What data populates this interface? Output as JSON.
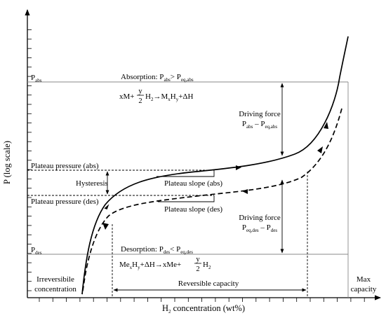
{
  "figure": {
    "axis_y_label": "P (log scale)",
    "axis_x_label": {
      "main": "H",
      "sub": "2",
      "rest": " concentration (wt%)"
    }
  },
  "levels": {
    "p_abs": {
      "main": "P",
      "sub": "abs"
    },
    "p_des": {
      "main": "P",
      "sub": "des"
    },
    "plateau_abs": "Plateau pressure (abs)",
    "plateau_des": "Plateau pressure (des)",
    "hysteresis": "Hysteresis"
  },
  "slopes": {
    "abs": "Plateau slope (abs)",
    "des": "Plateau slope (des)"
  },
  "absorption": {
    "title_prefix": "Absorption: P",
    "title_sub1": "abs",
    "title_mid": "> P",
    "title_sub2": "eq,abs",
    "reaction": {
      "left": "xM+",
      "frac_num": "y",
      "frac_den": "2",
      "h2": "H",
      "h2_sub": "2",
      "arrow": "→",
      "product": "M",
      "product_sub1": "x",
      "product_mid": "H",
      "product_sub2": "y",
      "tail": "+ΔH"
    }
  },
  "desorption": {
    "title_prefix": "Desorption: P",
    "title_sub1": "des",
    "title_mid": "< P",
    "title_sub2": "eq,des",
    "reaction": {
      "left": "Me",
      "left_sub1": "x",
      "left_mid": "H",
      "left_sub2": "y",
      "mid": "+ΔH→xMe+",
      "frac_num": "y",
      "frac_den": "2",
      "h2": "H",
      "h2_sub": "2"
    }
  },
  "driving_force_abs": {
    "line1": "Driving force",
    "line2_a": "P",
    "line2_a_sub": "abs",
    "line2_mid": " – P",
    "line2_b_sub": "eq,abs"
  },
  "driving_force_des": {
    "line1": "Driving force",
    "line2_a": "P",
    "line2_a_sub": "eq,des",
    "line2_mid": " – P",
    "line2_b_sub": "des"
  },
  "capacity": {
    "irreversible_line1": "Irreversibile",
    "irreversible_line2": "concentration",
    "reversible": "Reversible capacity",
    "max_line1": "Max",
    "max_line2": "capacity"
  }
}
